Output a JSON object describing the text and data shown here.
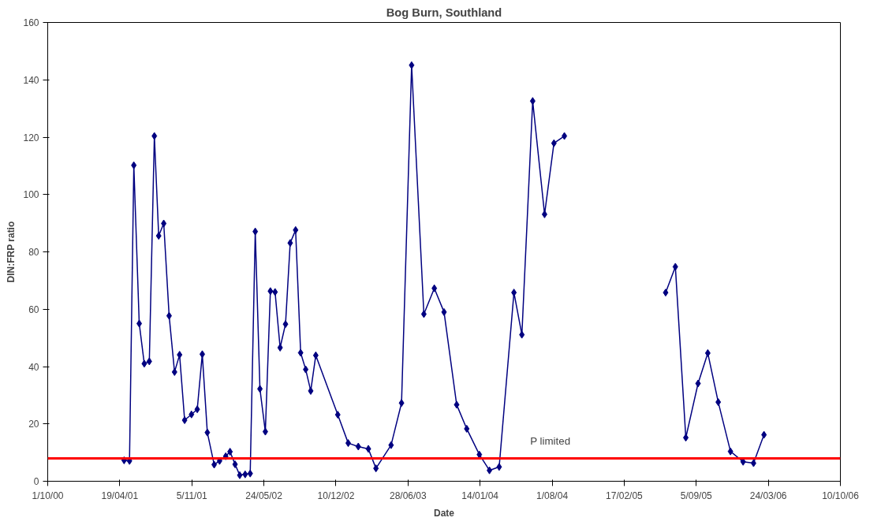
{
  "chart_data": {
    "type": "line",
    "title": "Bog Burn, Southland",
    "xlabel": "Date",
    "ylabel": "DIN:FRP ratio",
    "x": [
      "2001-05-01",
      "2001-05-16",
      "2001-05-28",
      "2001-06-12",
      "2001-06-26",
      "2001-07-10",
      "2001-07-24",
      "2001-08-05",
      "2001-08-19",
      "2001-09-03",
      "2001-09-18",
      "2001-10-02",
      "2001-10-16",
      "2001-11-04",
      "2001-11-20",
      "2001-12-04",
      "2001-12-18",
      "2002-01-06",
      "2002-01-21",
      "2002-02-07",
      "2002-02-19",
      "2002-03-05",
      "2002-03-18",
      "2002-04-02",
      "2002-04-16",
      "2002-04-30",
      "2002-05-13",
      "2002-05-28",
      "2002-06-11",
      "2002-06-24",
      "2002-07-08",
      "2002-07-23",
      "2002-08-05",
      "2002-08-20",
      "2002-09-03",
      "2002-09-17",
      "2002-10-01",
      "2002-10-15",
      "2002-12-15",
      "2003-01-13",
      "2003-02-10",
      "2003-03-10",
      "2003-03-31",
      "2003-05-12",
      "2003-06-10",
      "2003-07-08",
      "2003-08-11",
      "2003-09-09",
      "2003-10-06",
      "2003-11-10",
      "2003-12-08",
      "2004-01-12",
      "2004-02-09",
      "2004-03-07",
      "2004-04-17",
      "2004-05-09",
      "2004-06-08",
      "2004-07-11",
      "2004-08-06",
      "2004-09-04",
      "2005-01-15",
      "2005-06-12",
      "2005-07-09",
      "2005-08-07",
      "2005-09-10",
      "2005-10-07",
      "2005-11-05",
      "2005-12-09",
      "2006-01-13",
      "2006-02-11",
      "2006-03-12"
    ],
    "series": [
      {
        "color": "#000080",
        "values": [
          7.3,
          7.1,
          110.2,
          55,
          41,
          41.8,
          120.4,
          85.6,
          89.9,
          57.7,
          38.1,
          44.1,
          21.3,
          23.3,
          25.1,
          44.3,
          17,
          5.8,
          7.1,
          8.7,
          10.3,
          5.9,
          2.1,
          2.4,
          2.7,
          87.1,
          32.2,
          17.3,
          66.3,
          66,
          46.6,
          54.8,
          83.1,
          87.6,
          44.8,
          39,
          31.5,
          43.9,
          23.2,
          13.3,
          12.1,
          11.3,
          4.5,
          12.6,
          27.3,
          145.1,
          58.3,
          67.3,
          59,
          26.7,
          18.3,
          9.3,
          3.8,
          5,
          65.8,
          51.1,
          132.6,
          93.1,
          117.9,
          120.4,
          null,
          65.8,
          74.8,
          15.2,
          34.1,
          44.7,
          27.6,
          10.4,
          6.8,
          6.3,
          16.2
        ]
      }
    ],
    "marker": "diamond",
    "line_style": "solid",
    "grid": false,
    "xlim": [
      "2000-10-01",
      "2006-10-10"
    ],
    "xticks": [
      {
        "value": "2000-10-01",
        "label": "1/10/00"
      },
      {
        "value": "2001-04-19",
        "label": "19/04/01"
      },
      {
        "value": "2001-11-05",
        "label": "5/11/01"
      },
      {
        "value": "2002-05-24",
        "label": "24/05/02"
      },
      {
        "value": "2002-12-10",
        "label": "10/12/02"
      },
      {
        "value": "2003-06-28",
        "label": "28/06/03"
      },
      {
        "value": "2004-01-14",
        "label": "14/01/04"
      },
      {
        "value": "2004-08-01",
        "label": "1/08/04"
      },
      {
        "value": "2005-02-17",
        "label": "17/02/05"
      },
      {
        "value": "2005-09-05",
        "label": "5/09/05"
      },
      {
        "value": "2006-03-24",
        "label": "24/03/06"
      },
      {
        "value": "2006-10-10",
        "label": "10/10/06"
      }
    ],
    "ylim": [
      0,
      160
    ],
    "yticks": [
      0,
      20,
      40,
      60,
      80,
      100,
      120,
      140,
      160
    ],
    "ref_lines": [
      {
        "axis": "y",
        "value": 8,
        "label": "P limited",
        "color": "#ff0000"
      }
    ]
  }
}
